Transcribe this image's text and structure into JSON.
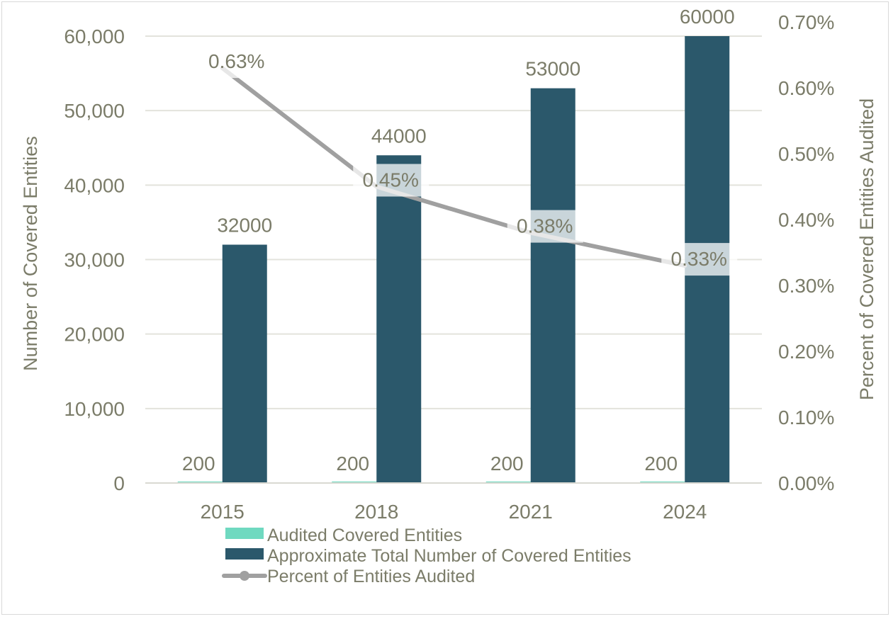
{
  "chart_data": {
    "type": "bar",
    "categories": [
      "2015",
      "2018",
      "2021",
      "2024"
    ],
    "series": [
      {
        "name": "Audited Covered Entities",
        "kind": "bar",
        "axis": "left",
        "color": "#6fd9c0",
        "values": [
          200,
          200,
          200,
          200
        ],
        "labels": [
          "200",
          "200",
          "200",
          "200"
        ]
      },
      {
        "name": "Approximate Total Number of Covered Entities",
        "kind": "bar",
        "axis": "left",
        "color": "#2b586b",
        "values": [
          32000,
          44000,
          53000,
          60000
        ],
        "labels": [
          "32000",
          "44000",
          "53000",
          "60000"
        ]
      },
      {
        "name": "Percent of Entities Audited",
        "kind": "line",
        "axis": "right",
        "color": "#a0a0a0",
        "values": [
          0.63,
          0.45,
          0.38,
          0.33
        ],
        "labels": [
          "0.63%",
          "0.45%",
          "0.38%",
          "0.33%"
        ]
      }
    ],
    "ylabel": "Number of Covered Entities",
    "y2label": "Percent of Covered Entities Audited",
    "ylim": [
      0,
      60000
    ],
    "y2lim": [
      0,
      0.7
    ],
    "yticks": [
      "0",
      "10,000",
      "20,000",
      "30,000",
      "40,000",
      "50,000",
      "60,000"
    ],
    "y2ticks": [
      "0.00%",
      "0.10%",
      "0.20%",
      "0.30%",
      "0.40%",
      "0.50%",
      "0.60%",
      "0.70%"
    ],
    "grid": true,
    "legend": "bottom"
  }
}
